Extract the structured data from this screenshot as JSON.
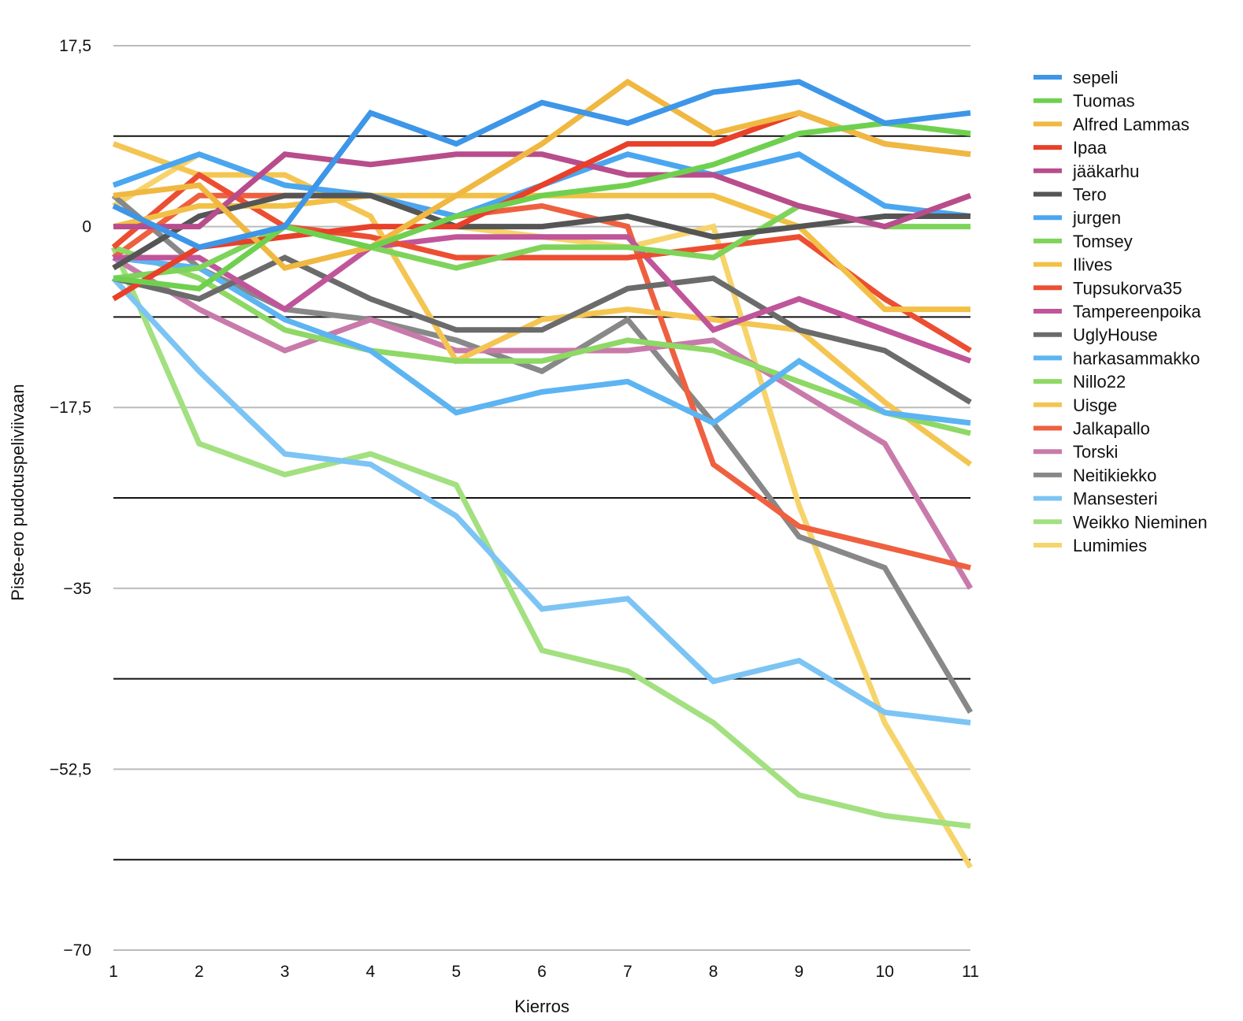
{
  "chart_data": {
    "type": "line",
    "xlabel": "Kierros",
    "ylabel": "Piste-ero pudotuspeliviivaan",
    "x": [
      1,
      2,
      3,
      4,
      5,
      6,
      7,
      8,
      9,
      10,
      11
    ],
    "xlim": [
      1,
      11
    ],
    "ylim": [
      -70,
      17.5
    ],
    "y_ticks": [
      17.5,
      0,
      -17.5,
      -35,
      -52.5,
      -70
    ],
    "y_tick_labels": [
      "17,5",
      "0",
      "−17,5",
      "−35",
      "−52,5",
      "−70"
    ],
    "x_tick_labels": [
      "1",
      "2",
      "3",
      "4",
      "5",
      "6",
      "7",
      "8",
      "9",
      "10",
      "11"
    ],
    "gridlines": [
      17.5,
      8.75,
      0,
      -8.75,
      -17.5,
      -26.25,
      -35,
      -43.75,
      -52.5,
      -61.25,
      -70
    ],
    "legend_position": "right",
    "series": [
      {
        "name": "sepeli",
        "color": "#3d96e8",
        "values": [
          2,
          -2,
          0,
          11,
          8,
          12,
          10,
          13,
          14,
          10,
          11
        ]
      },
      {
        "name": "Tuomas",
        "color": "#6fd04f",
        "values": [
          -5,
          -6,
          0,
          -2,
          1,
          3,
          4,
          6,
          9,
          10,
          9
        ]
      },
      {
        "name": "Alfred Lammas",
        "color": "#f0b840",
        "values": [
          3,
          4,
          -4,
          -2,
          3,
          8,
          14,
          9,
          11,
          8,
          7
        ]
      },
      {
        "name": "Ipaa",
        "color": "#e8402a",
        "values": [
          -7,
          -2,
          -1,
          0,
          0,
          4,
          8,
          8,
          11,
          8,
          7
        ]
      },
      {
        "name": "jääkarhu",
        "color": "#b84d8c",
        "values": [
          0,
          0,
          7,
          6,
          7,
          7,
          5,
          5,
          2,
          0,
          3
        ]
      },
      {
        "name": "Tero",
        "color": "#555555",
        "values": [
          -4,
          1,
          3,
          3,
          0,
          0,
          1,
          -1,
          0,
          1,
          1
        ]
      },
      {
        "name": "jurgen",
        "color": "#4aa6f0",
        "values": [
          4,
          7,
          4,
          3,
          1,
          4,
          7,
          5,
          7,
          2,
          1
        ]
      },
      {
        "name": "Tomsey",
        "color": "#7ed45a",
        "values": [
          -5,
          -4,
          0,
          -2,
          -4,
          -2,
          -2,
          -3,
          2,
          0,
          0
        ]
      },
      {
        "name": "Ilives",
        "color": "#f2c046",
        "values": [
          0,
          2,
          2,
          3,
          3,
          3,
          3,
          3,
          0,
          -8,
          -8
        ]
      },
      {
        "name": "Tupsukorva35",
        "color": "#ec4e32",
        "values": [
          -2,
          5,
          0,
          -1,
          -3,
          -3,
          -3,
          -2,
          -1,
          -7,
          -12
        ]
      },
      {
        "name": "Tampereenpoika",
        "color": "#c0559a",
        "values": [
          -3,
          -3,
          -8,
          -2,
          -1,
          -1,
          -1,
          -10,
          -7,
          -10,
          -13
        ]
      },
      {
        "name": "UglyHouse",
        "color": "#6b6b6b",
        "values": [
          -5,
          -7,
          -3,
          -7,
          -10,
          -10,
          -6,
          -5,
          -10,
          -12,
          -17
        ]
      },
      {
        "name": "harkasammakko",
        "color": "#5cb4f2",
        "values": [
          -3,
          -4,
          -9,
          -12,
          -18,
          -16,
          -15,
          -19,
          -13,
          -18,
          -19
        ]
      },
      {
        "name": "Nillo22",
        "color": "#8ed866",
        "values": [
          -2,
          -5,
          -10,
          -12,
          -13,
          -13,
          -11,
          -12,
          -15,
          -18,
          -20
        ]
      },
      {
        "name": "Uisge",
        "color": "#f4c552",
        "values": [
          8,
          5,
          5,
          1,
          -13,
          -9,
          -8,
          -9,
          -10,
          -17,
          -23
        ]
      },
      {
        "name": "Jalkapallo",
        "color": "#ee6040",
        "values": [
          -3,
          3,
          3,
          3,
          1,
          2,
          0,
          -23,
          -29,
          -31,
          -33
        ]
      },
      {
        "name": "Torski",
        "color": "#c87aaa",
        "values": [
          -3,
          -8,
          -12,
          -9,
          -12,
          -12,
          -12,
          -11,
          -16,
          -21,
          -35
        ]
      },
      {
        "name": "Neitikiekko",
        "color": "#888888",
        "values": [
          3,
          -4,
          -8,
          -9,
          -11,
          -14,
          -9,
          -19,
          -30,
          -33,
          -47
        ]
      },
      {
        "name": "Mansesteri",
        "color": "#7cc4f4",
        "values": [
          -5,
          -14,
          -22,
          -23,
          -28,
          -37,
          -36,
          -44,
          -42,
          -47,
          -48
        ]
      },
      {
        "name": "Weikko Nieminen",
        "color": "#a2e080",
        "values": [
          -2,
          -21,
          -24,
          -22,
          -25,
          -41,
          -43,
          -48,
          -55,
          -57,
          -58
        ]
      },
      {
        "name": "Lumimies",
        "color": "#f6d46c",
        "values": [
          2,
          7,
          4,
          3,
          0,
          -1,
          -2,
          0,
          -27,
          -48,
          -62
        ]
      }
    ]
  }
}
